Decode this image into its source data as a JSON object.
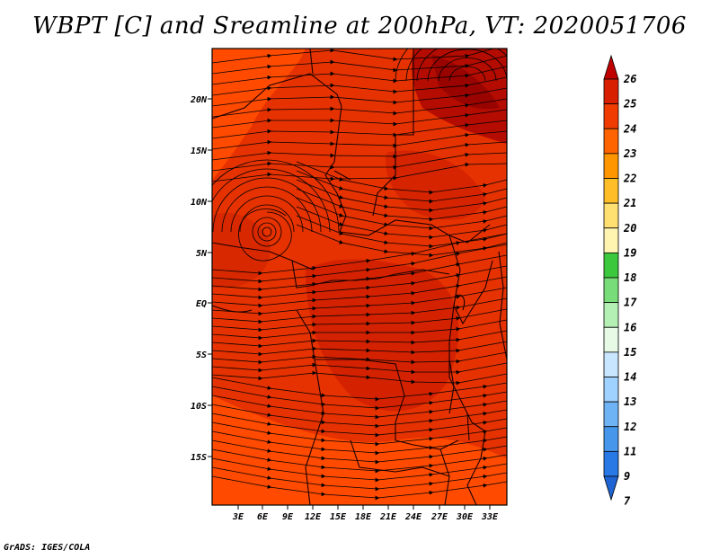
{
  "title": "WBPT [C] and Sreamline at 200hPa, VT: 2020051706",
  "credit": "GrADS: IGES/COLA",
  "lat_labels": [
    "20N",
    "15N",
    "10N",
    "5N",
    "EQ",
    "5S",
    "10S",
    "15S"
  ],
  "lon_labels": [
    "3E",
    "6E",
    "9E",
    "12E",
    "15E",
    "18E",
    "21E",
    "24E",
    "27E",
    "30E",
    "33E"
  ],
  "colorbar": {
    "labels": [
      "26",
      "25",
      "24",
      "23",
      "22",
      "21",
      "20",
      "19",
      "18",
      "17",
      "16",
      "15",
      "14",
      "13",
      "12",
      "11",
      "9",
      "7"
    ],
    "colors": [
      "#c00000",
      "#d82000",
      "#f03c00",
      "#ff6400",
      "#ff9600",
      "#ffbe28",
      "#ffe070",
      "#fff4b0",
      "#3cc83c",
      "#78dc78",
      "#b4f0b4",
      "#e6fae6",
      "#c8e6ff",
      "#a0d2ff",
      "#6eb4f5",
      "#4696eb",
      "#2878e6",
      "#1e64d2"
    ]
  },
  "colors": {
    "dominant_field": "#e03000",
    "warm_field": "#c81e00",
    "hot_field": "#b00a00",
    "cool_field": "#ff4a00"
  }
}
